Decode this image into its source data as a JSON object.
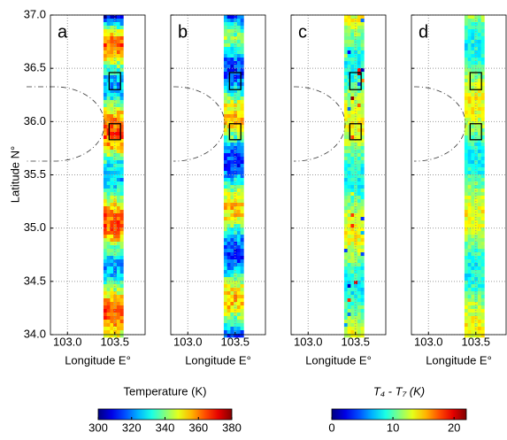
{
  "chart_data": {
    "type": "map-panels",
    "ylabel": "Latitude N°",
    "xlabel": "Longitude E°",
    "xlim": [
      102.82,
      103.82
    ],
    "ylim": [
      34,
      37
    ],
    "xticks": [
      {
        "value": 103,
        "label": "103.0"
      },
      {
        "value": 103.5,
        "label": "103.5"
      }
    ],
    "yticks": [
      {
        "value": 34,
        "label": "34.0"
      },
      {
        "value": 34.5,
        "label": "34.5"
      },
      {
        "value": 35,
        "label": "35.0"
      },
      {
        "value": 35.5,
        "label": "35.5"
      },
      {
        "value": 36,
        "label": "36.0"
      },
      {
        "value": 36.5,
        "label": "36.5"
      },
      {
        "value": 37,
        "label": "37.0"
      }
    ],
    "grid": true,
    "swath_lon": [
      103.38,
      103.59
    ],
    "boxes": [
      {
        "lon": [
          103.44,
          103.56
        ],
        "lat": [
          36.3,
          36.46
        ]
      },
      {
        "lon": [
          103.44,
          103.56
        ],
        "lat": [
          35.83,
          35.98
        ]
      }
    ],
    "panels": [
      {
        "label": "a",
        "colorbar": 0
      },
      {
        "label": "b",
        "colorbar": 0
      },
      {
        "label": "c",
        "colorbar": 1
      },
      {
        "label": "d",
        "colorbar": 1
      }
    ],
    "colorbars": [
      {
        "title": "Temperature (K)",
        "clim": [
          300,
          380
        ],
        "ticks": [
          300,
          320,
          340,
          360,
          380
        ],
        "colormap": "jet"
      },
      {
        "title": "T₄ - T₇ (K)",
        "clim": [
          0,
          22
        ],
        "ticks": [
          0,
          10,
          20
        ],
        "colormap": "jet"
      }
    ]
  }
}
